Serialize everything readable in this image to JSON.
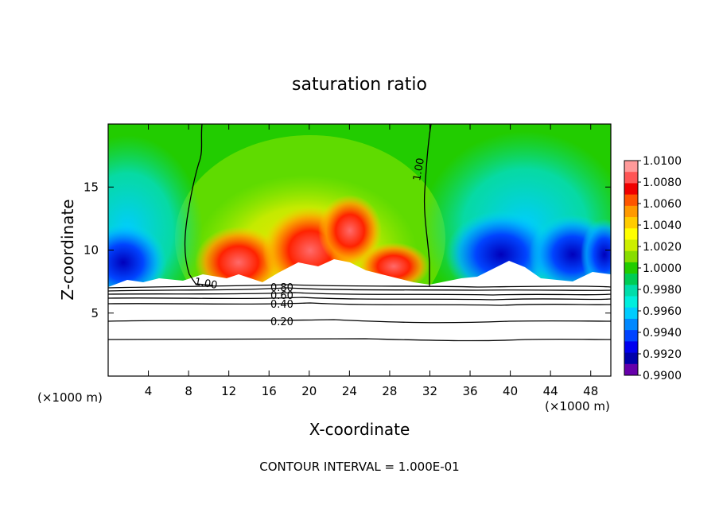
{
  "chart_data": {
    "type": "heatmap",
    "title": "saturation ratio",
    "xlabel": "X-coordinate",
    "ylabel": "Z-coordinate",
    "x_unit": "(×1000 m)",
    "x_unit_right": "(×1000 m)",
    "footer": "CONTOUR INTERVAL = 1.000E-01",
    "xlim": [
      0,
      50
    ],
    "ylim": [
      0,
      20
    ],
    "x_ticks": [
      4,
      8,
      12,
      16,
      20,
      24,
      28,
      32,
      36,
      40,
      44,
      48
    ],
    "y_ticks": [
      5,
      10,
      15
    ],
    "colorbar": {
      "min": 0.99,
      "max": 1.01,
      "labels": [
        "1.0100",
        "1.0080",
        "1.0060",
        "1.0040",
        "1.0020",
        "1.0000",
        "0.9980",
        "0.9960",
        "0.9940",
        "0.9920",
        "0.9900"
      ],
      "colors": [
        "#ff9a9a",
        "#ff5555",
        "#f00000",
        "#ff5500",
        "#ff9900",
        "#ffcc00",
        "#ffff00",
        "#ccee00",
        "#88dd00",
        "#22cc00",
        "#00cc55",
        "#00ddaa",
        "#00eedd",
        "#00ccff",
        "#0088ff",
        "#0044ff",
        "#0000ee",
        "#0000aa",
        "#6600aa"
      ]
    },
    "contours": [
      {
        "label": "1.00",
        "value": 1.0
      },
      {
        "label": "0.80",
        "value": 0.8
      },
      {
        "label": "0.60",
        "value": 0.6
      },
      {
        "label": "0.40",
        "value": 0.4
      },
      {
        "label": "0.20",
        "value": 0.2
      }
    ],
    "cloud_base_z": 7.3
  }
}
